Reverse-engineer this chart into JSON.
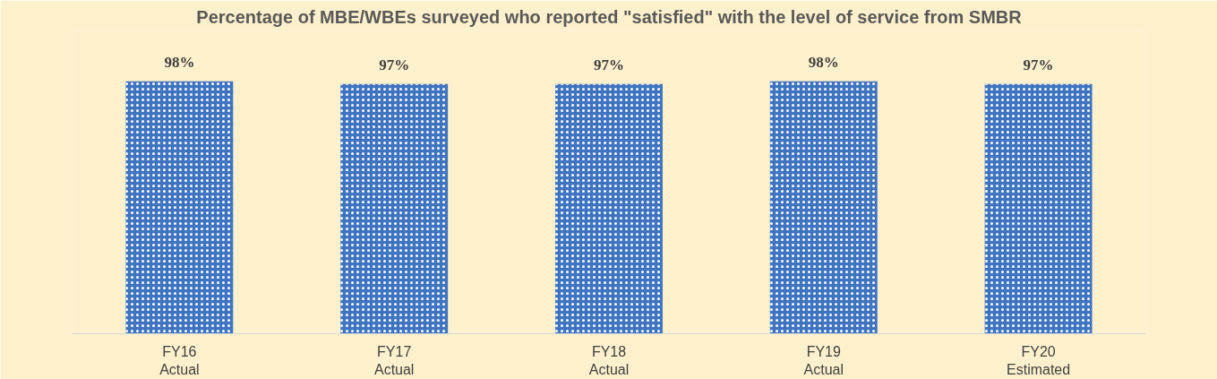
{
  "chart_data": {
    "type": "bar",
    "title": "Percentage of MBE/WBEs surveyed who reported \"satisfied\" with the level of service from SMBR",
    "categories": [
      "FY16\nActual",
      "FY17\nActual",
      "FY18\nActual",
      "FY19\nActual",
      "FY20\nEstimated"
    ],
    "values": [
      98,
      97,
      97,
      98,
      97
    ],
    "color": "#3f74c0",
    "value_labels": [
      "98%",
      "97%",
      "97%",
      "98%",
      "97%"
    ],
    "grid": false
  }
}
